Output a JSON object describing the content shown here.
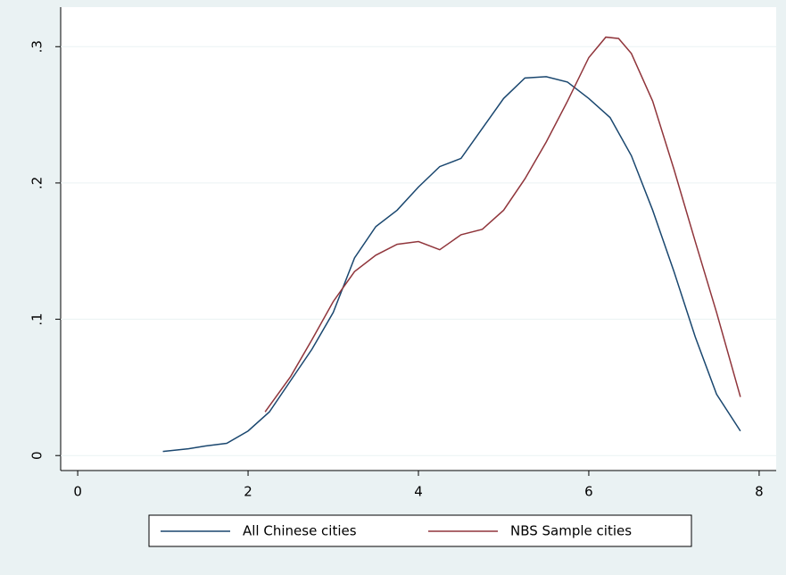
{
  "chart_data": {
    "type": "line",
    "series": [
      {
        "name": "All Chinese cities",
        "color": "#1a476f",
        "x": [
          1.0,
          1.3,
          1.5,
          1.75,
          2.0,
          2.25,
          2.5,
          2.75,
          3.0,
          3.25,
          3.5,
          3.75,
          4.0,
          4.25,
          4.5,
          4.75,
          5.0,
          5.25,
          5.5,
          5.75,
          6.0,
          6.25,
          6.5,
          6.75,
          7.0,
          7.25,
          7.5,
          7.78
        ],
        "values": [
          0.003,
          0.005,
          0.007,
          0.009,
          0.018,
          0.032,
          0.055,
          0.078,
          0.105,
          0.145,
          0.168,
          0.18,
          0.197,
          0.212,
          0.218,
          0.24,
          0.262,
          0.277,
          0.278,
          0.274,
          0.262,
          0.248,
          0.22,
          0.18,
          0.135,
          0.087,
          0.045,
          0.018
        ]
      },
      {
        "name": "NBS Sample cities",
        "color": "#90353b",
        "x": [
          2.2,
          2.5,
          2.75,
          3.0,
          3.25,
          3.5,
          3.75,
          4.0,
          4.25,
          4.5,
          4.75,
          5.0,
          5.25,
          5.5,
          5.75,
          6.0,
          6.2,
          6.35,
          6.5,
          6.75,
          7.0,
          7.25,
          7.5,
          7.78
        ],
        "values": [
          0.032,
          0.058,
          0.085,
          0.113,
          0.135,
          0.147,
          0.155,
          0.157,
          0.151,
          0.162,
          0.166,
          0.18,
          0.203,
          0.23,
          0.26,
          0.292,
          0.307,
          0.306,
          0.295,
          0.26,
          0.21,
          0.157,
          0.105,
          0.043
        ]
      }
    ],
    "xlim": [
      -0.2,
      8.2
    ],
    "ylim": [
      -0.011,
      0.329
    ],
    "xticks": [
      0,
      2,
      4,
      6,
      8
    ],
    "yticks": [
      0,
      {
        "value": 0.1,
        "label": ".1"
      },
      {
        "value": 0.2,
        "label": ".2"
      },
      {
        "value": 0.3,
        "label": ".3"
      }
    ],
    "grid": true,
    "legend": "bottom"
  }
}
